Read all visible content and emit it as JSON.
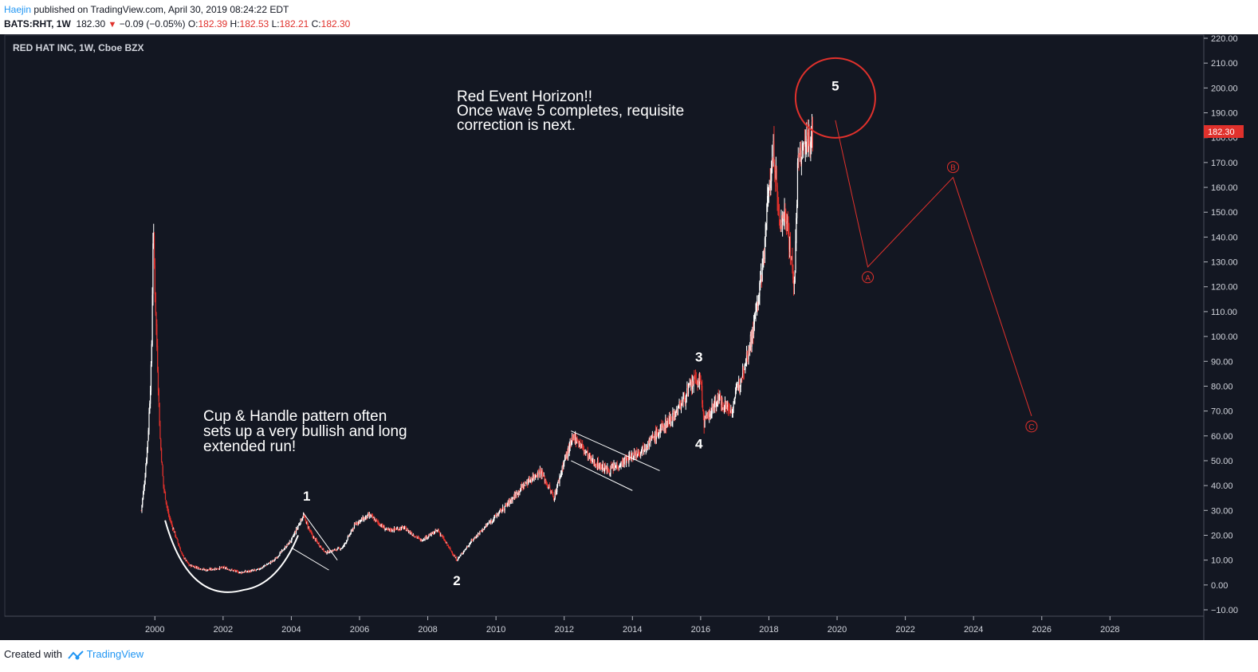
{
  "header": {
    "author": "Haejin",
    "published_text": "published on TradingView.com, April 30, 2019 08:24:22 EDT",
    "symbol_line": "BATS:RHT, 1W",
    "last_price": "182.30",
    "change": "−0.09 (−0.05%)",
    "open_label": "O:",
    "open": "182.39",
    "high_label": "H:",
    "high": "182.53",
    "low_label": "L:",
    "low": "182.21",
    "close_label": "C:",
    "close": "182.30"
  },
  "chart_data": {
    "type": "candlestick",
    "title": "RED HAT INC, 1W, Cboe BZX",
    "x_ticks": [
      "2000",
      "2002",
      "2004",
      "2006",
      "2008",
      "2010",
      "2012",
      "2014",
      "2016",
      "2018",
      "2020",
      "2022",
      "2024",
      "2026",
      "2028"
    ],
    "y_ticks": [
      "220.00",
      "210.00",
      "200.00",
      "190.00",
      "180.00",
      "170.00",
      "160.00",
      "150.00",
      "140.00",
      "130.00",
      "120.00",
      "110.00",
      "100.00",
      "90.00",
      "80.00",
      "70.00",
      "60.00",
      "50.00",
      "40.00",
      "30.00",
      "20.00",
      "10.00",
      "0.00",
      "−10.00"
    ],
    "ylim": [
      -10,
      220
    ],
    "xlim": [
      1995.6,
      2030.75
    ],
    "last_price_label": "182.30",
    "price_path": [
      {
        "x": 1999.6,
        "y": 30
      },
      {
        "x": 1999.7,
        "y": 42
      },
      {
        "x": 1999.8,
        "y": 60
      },
      {
        "x": 1999.9,
        "y": 90
      },
      {
        "x": 1999.95,
        "y": 145
      },
      {
        "x": 2000.0,
        "y": 120
      },
      {
        "x": 2000.05,
        "y": 100
      },
      {
        "x": 2000.15,
        "y": 60
      },
      {
        "x": 2000.25,
        "y": 40
      },
      {
        "x": 2000.4,
        "y": 28
      },
      {
        "x": 2000.6,
        "y": 20
      },
      {
        "x": 2000.8,
        "y": 12
      },
      {
        "x": 2001.0,
        "y": 8
      },
      {
        "x": 2001.5,
        "y": 6
      },
      {
        "x": 2002.0,
        "y": 7
      },
      {
        "x": 2002.5,
        "y": 5
      },
      {
        "x": 2003.0,
        "y": 6
      },
      {
        "x": 2003.5,
        "y": 10
      },
      {
        "x": 2004.0,
        "y": 18
      },
      {
        "x": 2004.35,
        "y": 28
      },
      {
        "x": 2004.6,
        "y": 20
      },
      {
        "x": 2005.0,
        "y": 13
      },
      {
        "x": 2005.5,
        "y": 15
      },
      {
        "x": 2005.9,
        "y": 25
      },
      {
        "x": 2006.3,
        "y": 28
      },
      {
        "x": 2006.8,
        "y": 22
      },
      {
        "x": 2007.3,
        "y": 23
      },
      {
        "x": 2007.8,
        "y": 18
      },
      {
        "x": 2008.3,
        "y": 22
      },
      {
        "x": 2008.85,
        "y": 10
      },
      {
        "x": 2009.3,
        "y": 18
      },
      {
        "x": 2009.8,
        "y": 25
      },
      {
        "x": 2010.3,
        "y": 32
      },
      {
        "x": 2010.8,
        "y": 40
      },
      {
        "x": 2011.3,
        "y": 46
      },
      {
        "x": 2011.7,
        "y": 35
      },
      {
        "x": 2012.0,
        "y": 50
      },
      {
        "x": 2012.3,
        "y": 60
      },
      {
        "x": 2012.8,
        "y": 50
      },
      {
        "x": 2013.3,
        "y": 46
      },
      {
        "x": 2013.8,
        "y": 50
      },
      {
        "x": 2014.3,
        "y": 55
      },
      {
        "x": 2014.8,
        "y": 62
      },
      {
        "x": 2015.3,
        "y": 70
      },
      {
        "x": 2015.8,
        "y": 82
      },
      {
        "x": 2016.0,
        "y": 82
      },
      {
        "x": 2016.1,
        "y": 65
      },
      {
        "x": 2016.5,
        "y": 75
      },
      {
        "x": 2016.9,
        "y": 70
      },
      {
        "x": 2017.2,
        "y": 85
      },
      {
        "x": 2017.5,
        "y": 100
      },
      {
        "x": 2017.8,
        "y": 125
      },
      {
        "x": 2018.0,
        "y": 160
      },
      {
        "x": 2018.15,
        "y": 175
      },
      {
        "x": 2018.3,
        "y": 145
      },
      {
        "x": 2018.5,
        "y": 150
      },
      {
        "x": 2018.75,
        "y": 120
      },
      {
        "x": 2018.85,
        "y": 170
      },
      {
        "x": 2019.0,
        "y": 175
      },
      {
        "x": 2019.3,
        "y": 182.3
      }
    ],
    "forecast_path": [
      {
        "label": "5",
        "x": 2019.95,
        "y": 187
      },
      {
        "label": "A",
        "x": 2020.9,
        "y": 128
      },
      {
        "label": "B",
        "x": 2023.4,
        "y": 164
      },
      {
        "label": "C",
        "x": 2025.7,
        "y": 68
      }
    ],
    "wave_labels": [
      {
        "label": "1",
        "x": 2004.45,
        "y": 34
      },
      {
        "label": "2",
        "x": 2008.85,
        "y": 0
      },
      {
        "label": "3",
        "x": 2015.95,
        "y": 90
      },
      {
        "label": "4",
        "x": 2015.95,
        "y": 55
      },
      {
        "label": "5",
        "x": 2019.95,
        "y": 199
      }
    ],
    "annotations": {
      "event_horizon": [
        "Red Event Horizon!!",
        "Once wave 5 completes, requisite",
        "correction is next."
      ],
      "cup_handle": [
        "Cup & Handle pattern often",
        "sets up a very bullish and long",
        "extended run!"
      ]
    },
    "forecast_color": "#e0312c",
    "background": "#131722",
    "candle_up": "#ffffff",
    "candle_down": "#e0312c"
  },
  "footer": {
    "created_with": "Created with",
    "brand": "TradingView"
  }
}
